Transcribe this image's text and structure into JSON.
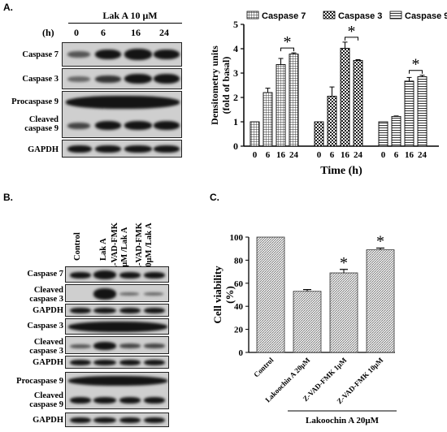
{
  "panel_a": {
    "letter": "A.",
    "treatment": "Lak A  10 μM",
    "unit": "(h)",
    "lanes": [
      "0",
      "6",
      "16",
      "24"
    ],
    "blots": [
      {
        "label": "Caspase 7"
      },
      {
        "label": "Caspase 3"
      },
      {
        "label": "Procaspase 9"
      },
      {
        "label": "Cleaved caspase 9"
      },
      {
        "label": "GAPDH"
      }
    ]
  },
  "panel_b": {
    "letter": "B.",
    "lanes": [
      "Control",
      "Lak A",
      "Z-VAD-FMK 1μM /Lak A",
      "Z-VAD-FMK 10μM /Lak A"
    ],
    "blots": [
      {
        "label": "Caspase 7"
      },
      {
        "label": "Cleaved caspase 3"
      },
      {
        "label": "GAPDH"
      },
      {
        "label": "Caspase 3"
      },
      {
        "label": "Cleaved caspase 3"
      },
      {
        "label": "GAPDH"
      },
      {
        "label": "Procaspase 9"
      },
      {
        "label": "Cleaved caspase 9"
      },
      {
        "label": "GAPDH"
      }
    ]
  },
  "panel_c": {
    "letter": "C."
  },
  "chart_data": [
    {
      "type": "bar",
      "ylabel": "Densitometry units (fold of basal)",
      "xlabel": "Time (h)",
      "ylim": [
        0,
        5
      ],
      "yticks": [
        "0",
        "1",
        "2",
        "3",
        "4",
        "5"
      ],
      "categories": [
        "0",
        "6",
        "16",
        "24"
      ],
      "legend_placement": "top",
      "significance": "*",
      "series": [
        {
          "name": "Caspase 7",
          "values": [
            1.0,
            2.2,
            3.35,
            3.78
          ],
          "errors": [
            0,
            0.18,
            0.25,
            0.05
          ],
          "pattern": "grid"
        },
        {
          "name": "Caspase 3",
          "values": [
            1.0,
            2.05,
            4.02,
            3.52
          ],
          "errors": [
            0,
            0.38,
            0.25,
            0.03
          ],
          "pattern": "checker"
        },
        {
          "name": "Caspase 9",
          "values": [
            1.0,
            1.22,
            2.67,
            2.85
          ],
          "errors": [
            0,
            0.02,
            0.15,
            0.06
          ],
          "pattern": "horizontal"
        }
      ]
    },
    {
      "type": "bar",
      "ylabel": "Cell viability (%)",
      "ylim": [
        0,
        100
      ],
      "yticks": [
        "0",
        "20",
        "40",
        "60",
        "80",
        "100"
      ],
      "categories": [
        "Control",
        "Lakoochin A 20μM",
        "Z-VAD-FMK 1μM",
        "Z-VAD-FMK 10μM"
      ],
      "values": [
        100,
        53,
        69,
        89
      ],
      "errors": [
        0,
        1.5,
        3,
        1.5
      ],
      "significant": [
        false,
        false,
        true,
        true
      ],
      "significance": "*",
      "group_label": "Lakoochin A  20μM"
    }
  ]
}
